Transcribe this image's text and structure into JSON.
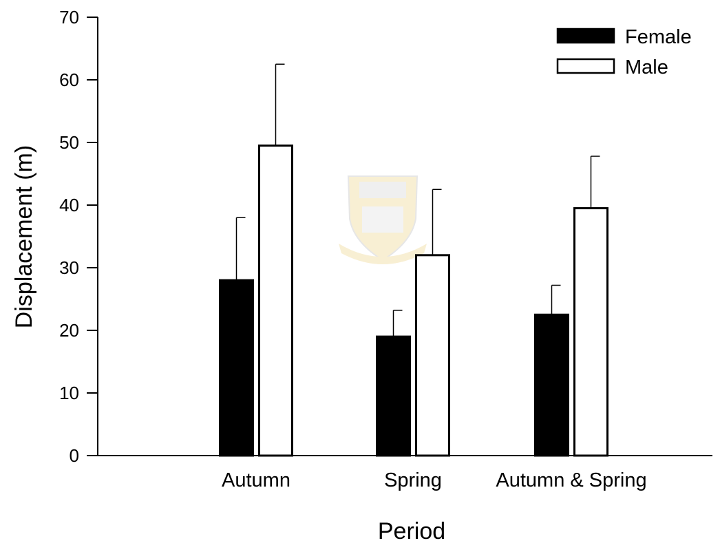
{
  "chart_data": {
    "type": "bar",
    "xlabel": "Period",
    "ylabel": "Displacement (m)",
    "ylim": [
      0,
      70
    ],
    "yticks": [
      0,
      10,
      20,
      30,
      40,
      50,
      60,
      70
    ],
    "categories": [
      "Autumn",
      "Spring",
      "Autumn & Spring"
    ],
    "series": [
      {
        "name": "Female",
        "values": [
          28,
          19,
          22.5
        ],
        "errors": [
          10,
          4.2,
          4.7
        ],
        "fill": "#000000"
      },
      {
        "name": "Male",
        "values": [
          49.5,
          32,
          39.5
        ],
        "errors": [
          13,
          10.5,
          8.3
        ],
        "fill": "#ffffff"
      }
    ],
    "legend": "top-right",
    "grid": false
  },
  "watermark": {
    "icon": "university-crest-icon",
    "color": "#e7c766"
  }
}
